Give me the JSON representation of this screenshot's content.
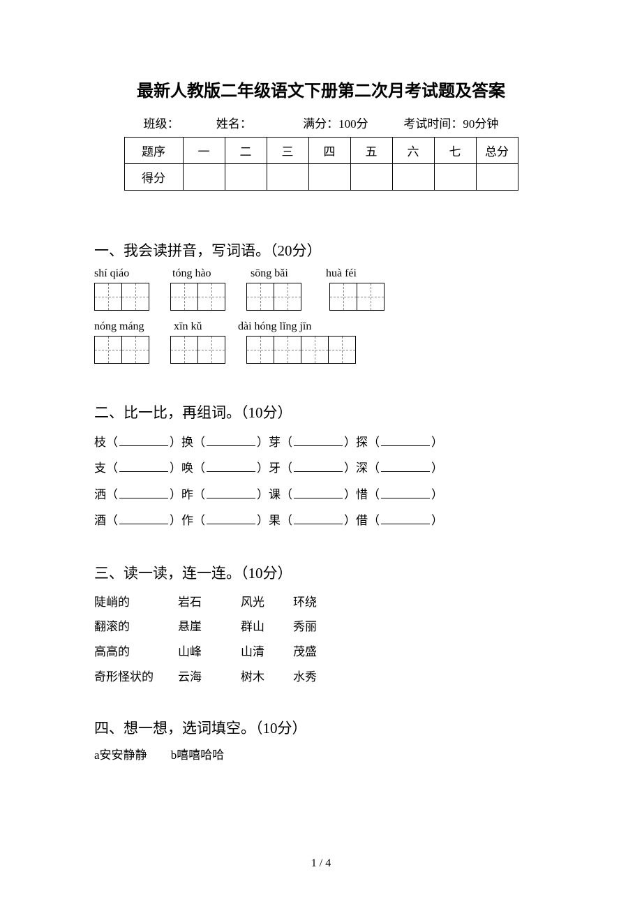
{
  "title": "最新人教版二年级语文下册第二次月考试题及答案",
  "meta": {
    "class_label": "班级：",
    "name_label": "姓名：",
    "full_label": "满分：100分",
    "time_label": "考试时间：90分钟"
  },
  "score_table": {
    "row1_label": "题序",
    "cols": [
      "一",
      "二",
      "三",
      "四",
      "五",
      "六",
      "七",
      "总分"
    ],
    "row2_label": "得分"
  },
  "q1": {
    "title": "一、我会读拼音，写词语。（20分）",
    "row1_pinyin": {
      "p1": "shí qiáo",
      "p2": "tóng hào",
      "p3": "sōng bǎi",
      "p4": "huà féi"
    },
    "row2_pinyin": {
      "p1": "nóng máng",
      "p2": "xīn kǔ",
      "p3": "dài hóng lǐng jīn"
    }
  },
  "q2": {
    "title": "二、比一比，再组词。（10分）",
    "lines": [
      {
        "a": "枝",
        "b": "换",
        "c": "芽",
        "d": "探"
      },
      {
        "a": "支",
        "b": "唤",
        "c": "牙",
        "d": "深"
      },
      {
        "a": "洒",
        "b": "昨",
        "c": "课",
        "d": "惜"
      },
      {
        "a": "酒",
        "b": "作",
        "c": "果",
        "d": "借"
      }
    ]
  },
  "q3": {
    "title": "三、读一读，连一连。（10分）",
    "rows": [
      {
        "c1": "陡峭的",
        "c2": "岩石",
        "c3": "风光",
        "c4": "环绕"
      },
      {
        "c1": "翻滚的",
        "c2": "悬崖",
        "c3": "群山",
        "c4": "秀丽"
      },
      {
        "c1": "高高的",
        "c2": "山峰",
        "c3": "山清",
        "c4": "茂盛"
      },
      {
        "c1": "奇形怪状的",
        "c2": "云海",
        "c3": "树木",
        "c4": "水秀"
      }
    ]
  },
  "q4": {
    "title": "四、想一想，选词填空。（10分）",
    "opt_a": "a安安静静",
    "opt_b": "b嘻嘻哈哈"
  },
  "footer": "1 / 4"
}
